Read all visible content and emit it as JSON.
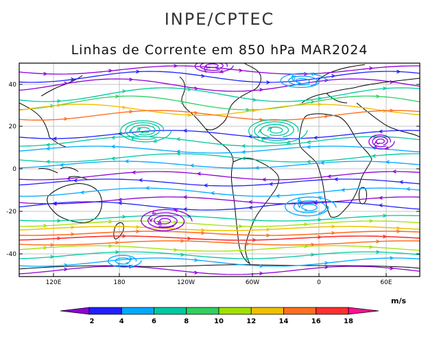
{
  "header": {
    "agency": "INPE/CPTEC",
    "title": "Linhas de Corrente em 850 hPa MAR2024"
  },
  "map": {
    "lat_ticks": [
      "40",
      "20",
      "0",
      "-20",
      "-40"
    ],
    "lon_ticks": [
      "120E",
      "180",
      "120W",
      "60W",
      "0",
      "60E"
    ],
    "palette": [
      "#8d00d8",
      "#2020ff",
      "#00a8ff",
      "#00c8a0",
      "#30d060",
      "#a0e000",
      "#f0c000",
      "#ff7020",
      "#ff3030",
      "#ff1090"
    ]
  },
  "colorbar": {
    "units": "m/s",
    "labels": [
      "2",
      "4",
      "6",
      "8",
      "10",
      "12",
      "14",
      "16",
      "18"
    ],
    "colors": [
      "#8d00d8",
      "#2020ff",
      "#00a8ff",
      "#00c8a0",
      "#30d060",
      "#a0e000",
      "#f0c000",
      "#ff7020",
      "#ff3030",
      "#ff1090"
    ]
  }
}
